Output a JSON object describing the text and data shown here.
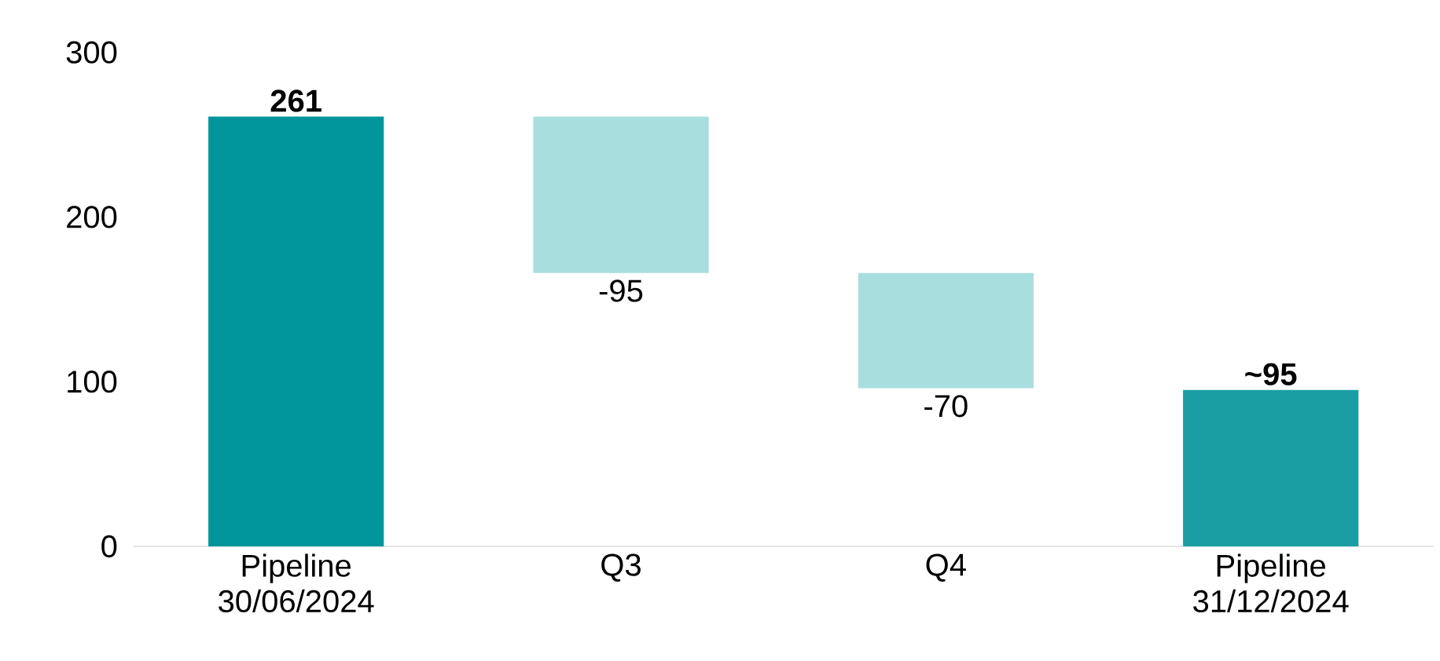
{
  "chart_data": {
    "type": "bar",
    "categories": [
      "Pipeline 30/06/2024",
      "Q3",
      "Q4",
      "Pipeline 31/12/2024"
    ],
    "values": [
      261,
      -95,
      -70,
      95
    ],
    "base": [
      0,
      261,
      166,
      0
    ],
    "colors": [
      "#00959a",
      "#a9dede",
      "#a9dede",
      "#1a9ea3"
    ],
    "value_labels": [
      "261",
      "-95",
      "-70",
      "~95"
    ],
    "ylim": [
      0,
      300
    ],
    "yticks": [
      0,
      100,
      200,
      300
    ]
  }
}
